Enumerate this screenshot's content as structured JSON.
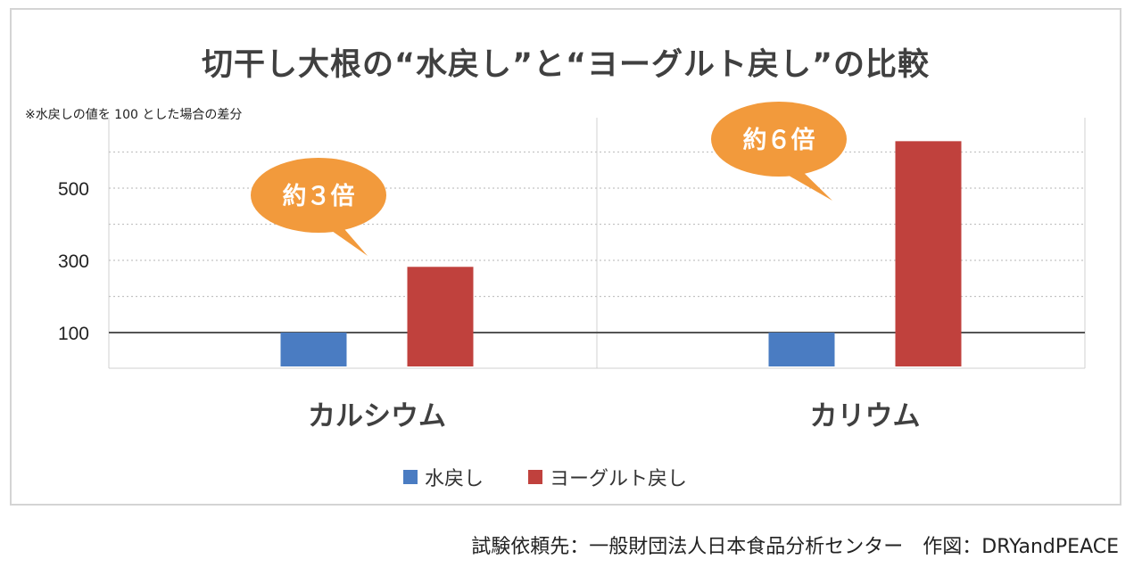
{
  "title": "切干し大根の“水戻し”と“ヨーグルト戻し”の比較",
  "note": "※水戻しの値を 100 とした場合の差分",
  "credit": "試験依頼先：一般財団法人日本食品分析センター　作図：DRYandPEACE",
  "chart_data": {
    "type": "bar",
    "categories": [
      "カルシウム",
      "カリウム"
    ],
    "series": [
      {
        "name": "水戻し",
        "color": "#4a7cc2",
        "values": [
          100,
          100
        ]
      },
      {
        "name": "ヨーグルト戻し",
        "color": "#c0413d",
        "values": [
          282,
          630
        ]
      }
    ],
    "y_ticks": [
      100,
      300,
      500
    ],
    "ylim": [
      0,
      700
    ],
    "baseline": 100,
    "grid": true,
    "legend": "bottom",
    "callouts": [
      "約３倍",
      "約６倍"
    ],
    "callout_color": "#f29a3c"
  }
}
